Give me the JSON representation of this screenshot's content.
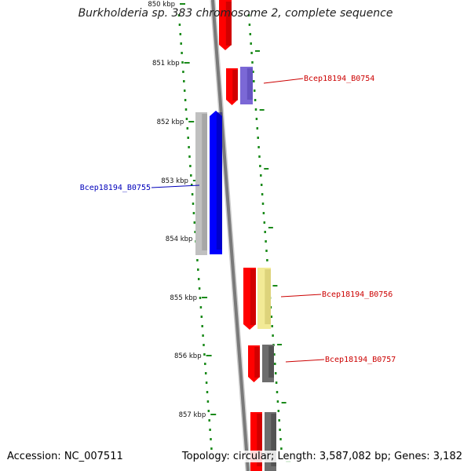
{
  "title": "Burkholderia sp. 383 chromosome 2, complete sequence",
  "footer": {
    "accession": "Accession: NC_007511",
    "summary": "Topology: circular; Length: 3,587,082 bp; Genes: 3,182"
  },
  "colors": {
    "tick_green": "#1a8a1a",
    "forward_label": "#cc0000",
    "reverse_label": "#0000bb",
    "backbone": "#888888"
  },
  "ticks": [
    {
      "label": "850 kbp"
    },
    {
      "label": "851 kbp"
    },
    {
      "label": "852 kbp"
    },
    {
      "label": "853 kbp"
    },
    {
      "label": "854 kbp"
    },
    {
      "label": "855 kbp"
    },
    {
      "label": "856 kbp"
    },
    {
      "label": "857 kbp"
    }
  ],
  "genes": [
    {
      "name": "Bcep18194_B0754",
      "strand": "forward",
      "cog_color": "#7b68d6"
    },
    {
      "name": "Bcep18194_B0755",
      "strand": "reverse",
      "cog_color": "#0000ff"
    },
    {
      "name": "Bcep18194_B0756",
      "strand": "forward",
      "cog_color": "#f2ea96"
    },
    {
      "name": "Bcep18194_B0757",
      "strand": "forward",
      "cog_color": "#6d6d6d"
    }
  ]
}
